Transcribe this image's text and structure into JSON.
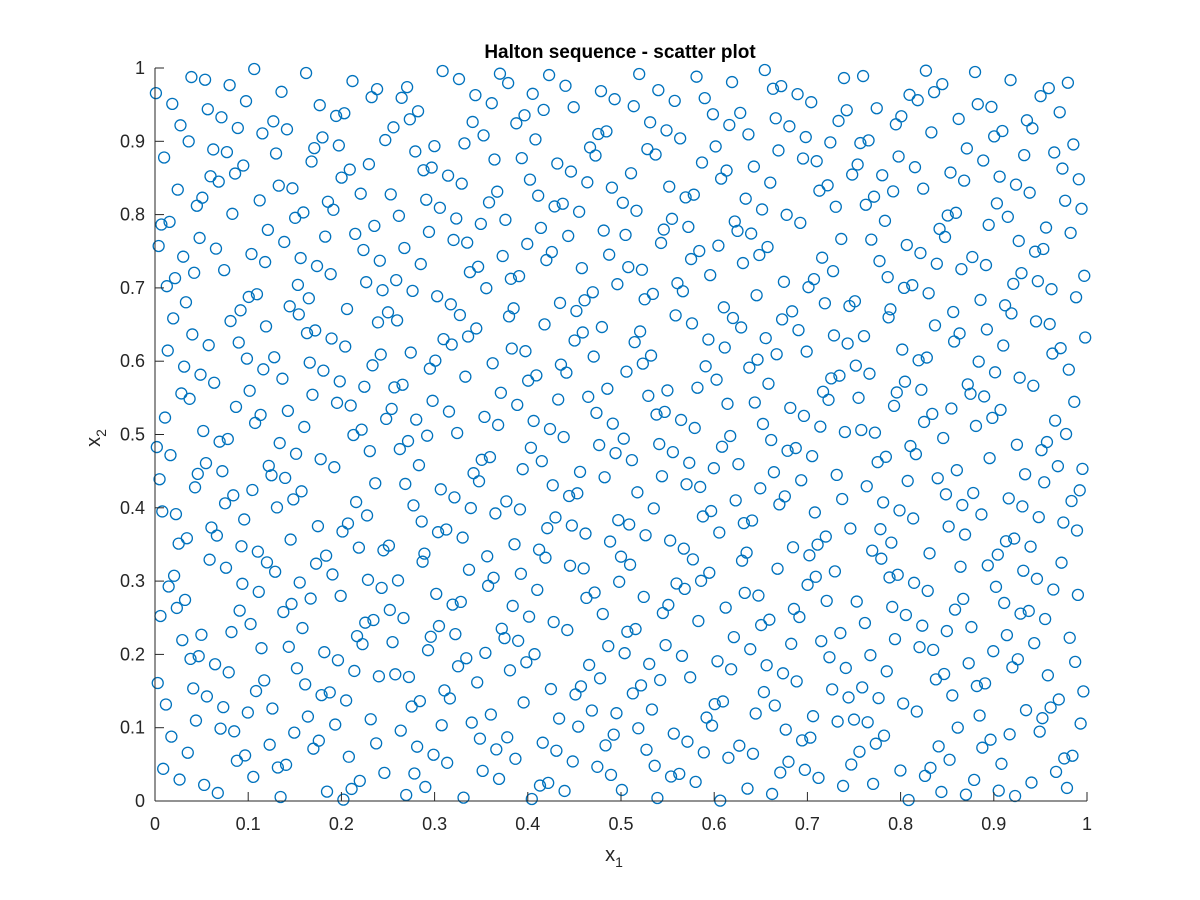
{
  "chart_data": {
    "type": "scatter",
    "title": "Halton sequence - scatter plot",
    "xlabel": "x",
    "xlabel_subscript": "1",
    "ylabel": "x",
    "ylabel_subscript": "2",
    "xlim": [
      0,
      1
    ],
    "ylim": [
      0,
      1
    ],
    "xticks": [
      "0",
      "0.1",
      "0.2",
      "0.3",
      "0.4",
      "0.5",
      "0.6",
      "0.7",
      "0.8",
      "0.9",
      "1"
    ],
    "yticks": [
      "0",
      "0.1",
      "0.2",
      "0.3",
      "0.4",
      "0.5",
      "0.6",
      "0.7",
      "0.8",
      "0.9",
      "1"
    ],
    "grid": false,
    "legend": "none",
    "marker": "open-circle",
    "marker_color": "#0072BD",
    "series_generator": {
      "method": "halton",
      "bases": [
        2,
        3
      ],
      "count": 1000,
      "skip": 1
    }
  }
}
